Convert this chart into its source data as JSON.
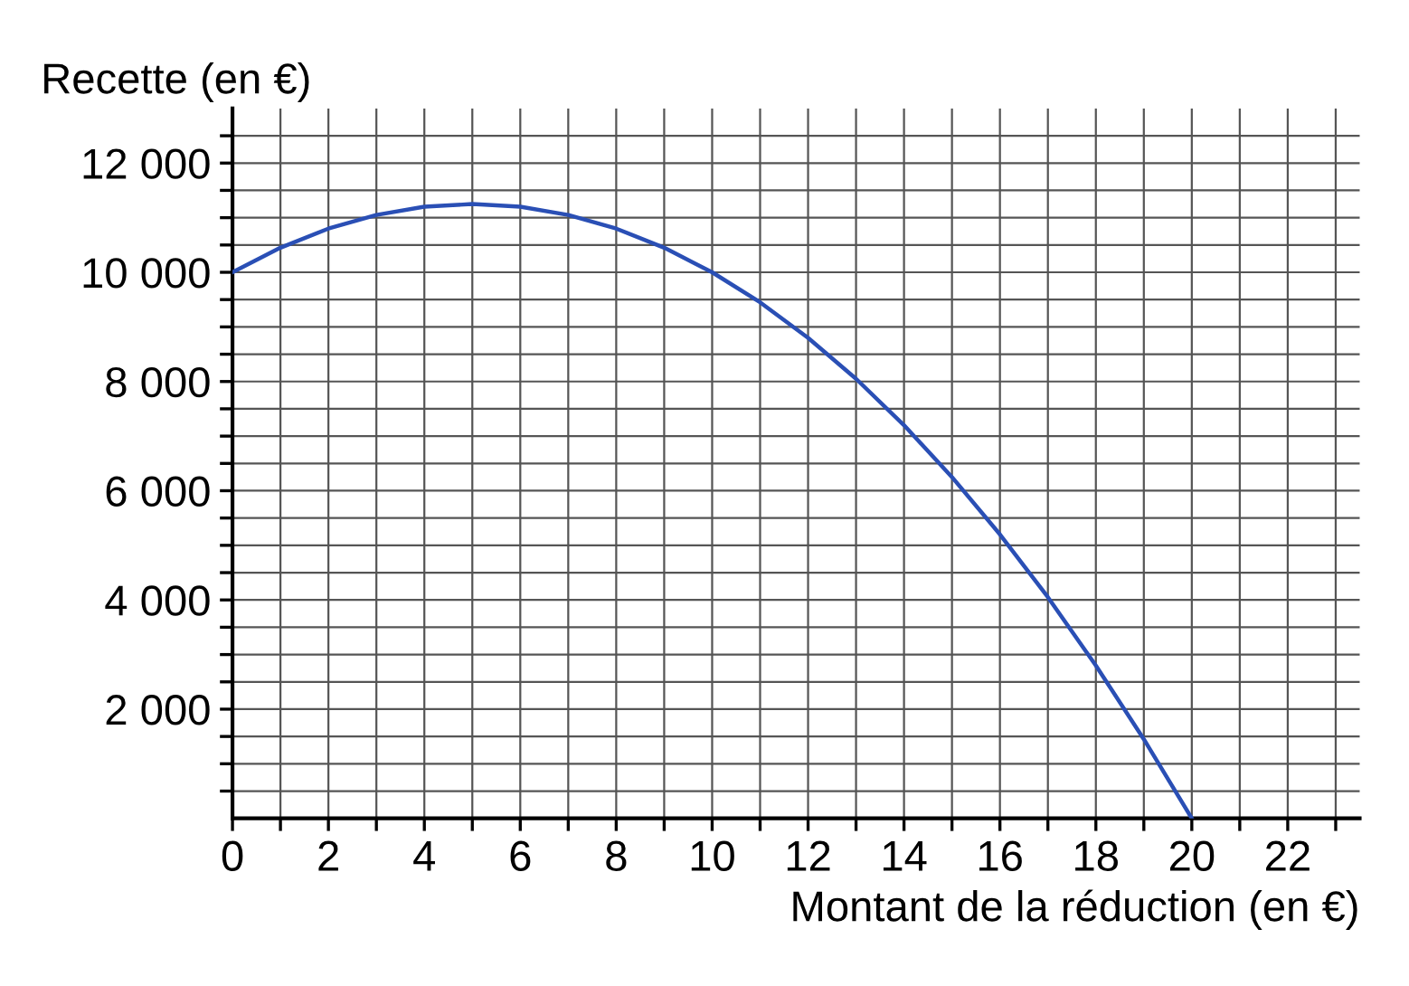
{
  "chart_data": {
    "type": "line",
    "xlabel": "Montant de la réduction (en €)",
    "ylabel": "Recette (en €)",
    "x": [
      0,
      1,
      2,
      3,
      4,
      5,
      6,
      7,
      8,
      9,
      10,
      11,
      12,
      13,
      14,
      15,
      16,
      17,
      18,
      19,
      20
    ],
    "series": [
      {
        "color": "#2a4fb5",
        "values": [
          10000,
          10450,
          10800,
          11050,
          11200,
          11250,
          11200,
          11050,
          10800,
          10450,
          10000,
          9450,
          8800,
          8050,
          7200,
          6250,
          5200,
          4050,
          2800,
          1450,
          0
        ]
      }
    ],
    "xlim": [
      0,
      23.5
    ],
    "ylim": [
      0,
      13000
    ],
    "xticks": [
      {
        "value": 0,
        "label": "0"
      },
      {
        "value": 1,
        "label": null
      },
      2,
      {
        "value": 3,
        "label": null
      },
      4,
      {
        "value": 5,
        "label": null
      },
      6,
      {
        "value": 7,
        "label": null
      },
      8,
      {
        "value": 9,
        "label": null
      },
      10,
      {
        "value": 11,
        "label": null
      },
      12,
      {
        "value": 13,
        "label": null
      },
      14,
      {
        "value": 15,
        "label": null
      },
      16,
      {
        "value": 17,
        "label": null
      },
      18,
      {
        "value": 19,
        "label": null
      },
      20,
      {
        "value": 21,
        "label": null
      },
      22,
      {
        "value": 23,
        "label": null
      }
    ],
    "yticks": [
      {
        "value": 500,
        "label": null
      },
      {
        "value": 1000,
        "label": null
      },
      {
        "value": 1500,
        "label": null
      },
      {
        "value": 2000,
        "label": "2 000"
      },
      {
        "value": 2500,
        "label": null
      },
      {
        "value": 3000,
        "label": null
      },
      {
        "value": 3500,
        "label": null
      },
      {
        "value": 4000,
        "label": "4 000"
      },
      {
        "value": 4500,
        "label": null
      },
      {
        "value": 5000,
        "label": null
      },
      {
        "value": 5500,
        "label": null
      },
      {
        "value": 6000,
        "label": "6 000"
      },
      {
        "value": 6500,
        "label": null
      },
      {
        "value": 7000,
        "label": null
      },
      {
        "value": 7500,
        "label": null
      },
      {
        "value": 8000,
        "label": "8 000"
      },
      {
        "value": 8500,
        "label": null
      },
      {
        "value": 9000,
        "label": null
      },
      {
        "value": 9500,
        "label": null
      },
      {
        "value": 10000,
        "label": "10 000"
      },
      {
        "value": 10500,
        "label": null
      },
      {
        "value": 11000,
        "label": null
      },
      {
        "value": 11500,
        "label": null
      },
      {
        "value": 12000,
        "label": "12 000"
      },
      {
        "value": 12500,
        "label": null
      }
    ],
    "grid": true,
    "marker": "none",
    "line_style": "solid"
  }
}
